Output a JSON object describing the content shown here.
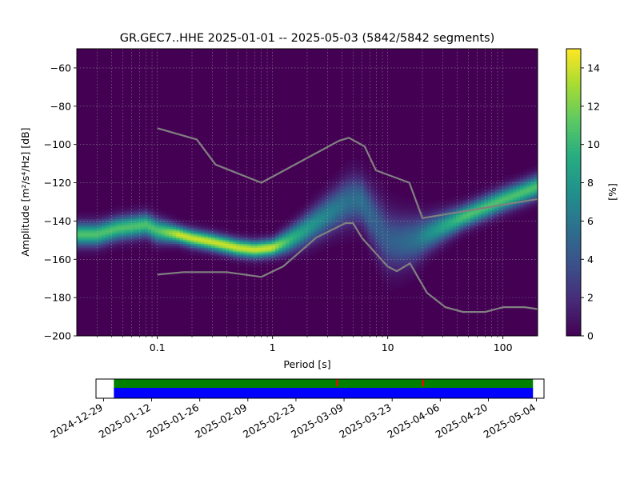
{
  "chart_data": {
    "type": "heatmap",
    "title": "GR.GEC7..HHE   2025-01-01 -- 2025-05-03  (5842/5842 segments)",
    "xlabel": "Period [s]",
    "ylabel": "Amplitude [m²/s⁴/Hz] [dB]",
    "x_scale": "log",
    "xlim": [
      0.02,
      200
    ],
    "ylim": [
      -200,
      -50
    ],
    "x_ticks": [
      0.1,
      1,
      10,
      100
    ],
    "x_tick_labels": [
      "0.1",
      "1",
      "10",
      "100"
    ],
    "y_ticks": [
      -200,
      -180,
      -160,
      -140,
      -120,
      -100,
      -80,
      -60
    ],
    "y_tick_labels": [
      "−200",
      "−180",
      "−160",
      "−140",
      "−120",
      "−100",
      "−80",
      "−60"
    ],
    "grid": true,
    "colorbar": {
      "label": "[%]",
      "range": [
        0,
        15
      ],
      "ticks": [
        0,
        2,
        4,
        6,
        8,
        10,
        12,
        14
      ],
      "tick_labels": [
        "0",
        "2",
        "4",
        "6",
        "8",
        "10",
        "12",
        "14"
      ],
      "colormap": "viridis"
    },
    "ppsd_mode_curve": {
      "period": [
        0.02,
        0.03,
        0.045,
        0.06,
        0.08,
        0.1,
        0.15,
        0.2,
        0.3,
        0.5,
        0.7,
        1,
        1.3,
        1.8,
        2.5,
        3.5,
        4.5,
        5.2,
        6,
        7,
        8.5,
        10,
        13,
        17,
        22,
        30,
        45,
        70,
        100,
        150,
        200
      ],
      "amplitude_db": [
        -147,
        -147,
        -144,
        -143,
        -142,
        -145,
        -147,
        -149,
        -151,
        -154,
        -155,
        -154,
        -151,
        -146,
        -140,
        -134,
        -130,
        -129,
        -130,
        -136,
        -144,
        -150,
        -151,
        -150,
        -147,
        -143,
        -138,
        -133,
        -129,
        -125,
        -122
      ],
      "spread_db": [
        4,
        4,
        4,
        4,
        4,
        4,
        3,
        3,
        3,
        3,
        3,
        3,
        4,
        5,
        6,
        7,
        8,
        8,
        8,
        9,
        10,
        10,
        9,
        8,
        6,
        5,
        4,
        4,
        4,
        4,
        4
      ]
    },
    "noise_models": {
      "high": {
        "period": [
          0.1,
          0.22,
          0.32,
          0.8,
          3.8,
          4.6,
          6.3,
          7.9,
          15.4,
          20,
          354.8
        ],
        "amplitude_db": [
          -91.5,
          -97.4,
          -110.5,
          -120,
          -98,
          -96.5,
          -101,
          -113.5,
          -120,
          -138.5,
          -126
        ]
      },
      "low": {
        "period": [
          0.1,
          0.17,
          0.4,
          0.8,
          1.24,
          2.4,
          4.3,
          5,
          6,
          10,
          12,
          15.6,
          21.9,
          31.6,
          45,
          70,
          101,
          154,
          200
        ],
        "amplitude_db": [
          -168,
          -166.7,
          -166.7,
          -169.2,
          -163.7,
          -148.6,
          -141.1,
          -141.1,
          -149,
          -163.8,
          -166.2,
          -162.1,
          -177.5,
          -185,
          -187.5,
          -187.5,
          -185,
          -185,
          -186
        ]
      }
    },
    "time_axis": {
      "tick_labels": [
        "2024-12-29",
        "2025-01-12",
        "2025-01-26",
        "2025-02-09",
        "2025-02-23",
        "2025-03-09",
        "2025-03-23",
        "2025-04-06",
        "2025-04-20",
        "2025-05-04"
      ],
      "data_start": "2025-01-01",
      "data_end": "2025-05-03",
      "bar_colors": {
        "top": "#008000",
        "bottom": "#0000ff",
        "marker": "#ff0000"
      },
      "marker_dates": [
        "2025-03-07",
        "2025-04-01"
      ]
    }
  }
}
